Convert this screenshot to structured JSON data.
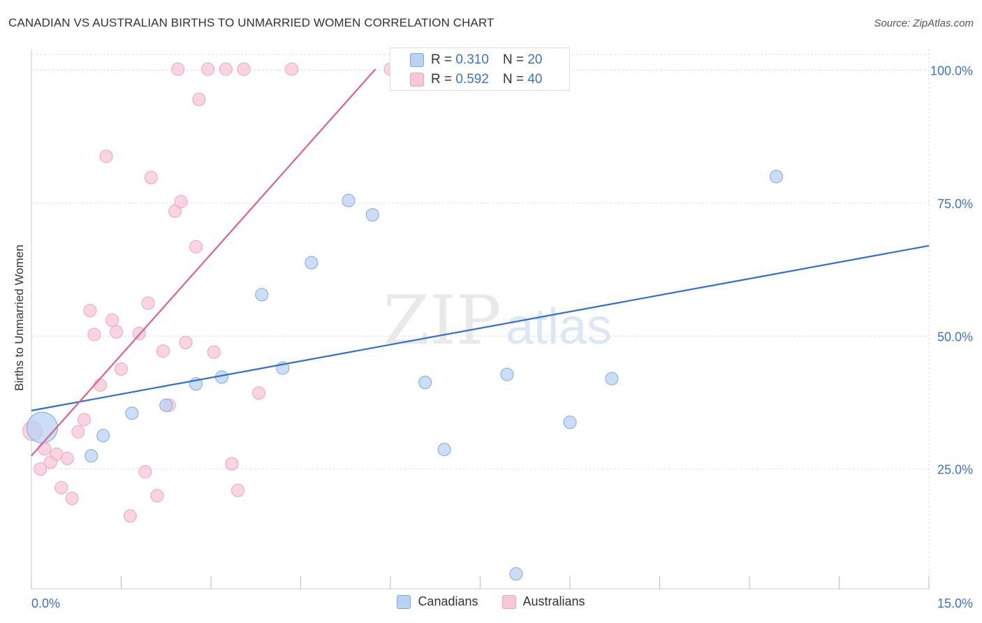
{
  "title": "CANADIAN VS AUSTRALIAN BIRTHS TO UNMARRIED WOMEN CORRELATION CHART",
  "source": "Source: ZipAtlas.com",
  "watermark": {
    "zip": "ZIP",
    "atlas": "atlas"
  },
  "colors": {
    "blue_fill": "#b9d3f3",
    "blue_stroke": "#7ea9df",
    "blue_line": "#2f6fce",
    "pink_fill": "#f8c6d5",
    "pink_stroke": "#eea3bb",
    "pink_line": "#e0628c",
    "tick_label": "#3a73c8",
    "grid": "#dddddd"
  },
  "inset_legend": [
    {
      "r_label": "R =",
      "r_value": "0.310",
      "n_label": "N =",
      "n_value": "20"
    },
    {
      "r_label": "R =",
      "r_value": "0.592",
      "n_label": "N =",
      "n_value": "40"
    }
  ],
  "chart_data": {
    "type": "scatter",
    "title": "CANADIAN VS AUSTRALIAN BIRTHS TO UNMARRIED WOMEN CORRELATION CHART",
    "xlabel": "",
    "ylabel": "Births to Unmarried Women",
    "xlim": [
      0,
      15
    ],
    "ylim": [
      2.5,
      104
    ],
    "x_tick_labels": [
      "0.0%",
      "15.0%"
    ],
    "y_tick_values": [
      25,
      50,
      75,
      100
    ],
    "y_tick_labels": [
      "25.0%",
      "50.0%",
      "75.0%",
      "100.0%"
    ],
    "grid": true,
    "legend_placement": "bottom-center",
    "series": [
      {
        "name": "Canadians",
        "color": "#b9d3f3",
        "points": [
          [
            0.18,
            32.8
          ],
          [
            1.0,
            27.5
          ],
          [
            1.2,
            31.3
          ],
          [
            1.68,
            35.5
          ],
          [
            2.25,
            37.0
          ],
          [
            2.75,
            41.0
          ],
          [
            3.18,
            42.3
          ],
          [
            3.85,
            57.8
          ],
          [
            4.2,
            44.0
          ],
          [
            4.68,
            63.8
          ],
          [
            5.3,
            75.5
          ],
          [
            5.7,
            72.8
          ],
          [
            6.58,
            41.3
          ],
          [
            6.9,
            28.7
          ],
          [
            7.5,
            100.5
          ],
          [
            7.95,
            42.8
          ],
          [
            8.1,
            5.3
          ],
          [
            9.0,
            33.8
          ],
          [
            9.7,
            42.0
          ],
          [
            12.45,
            80.0
          ]
        ],
        "sizes": [
          22,
          9,
          9,
          9,
          9,
          9,
          9,
          9,
          9,
          9,
          9,
          9,
          9,
          9,
          9,
          9,
          9,
          9,
          9,
          9
        ],
        "trend": {
          "x": [
            0,
            15
          ],
          "y": [
            36.0,
            67.0
          ]
        }
      },
      {
        "name": "Australians",
        "color": "#f8c6d5",
        "points": [
          [
            0.02,
            32.2
          ],
          [
            0.15,
            25.0
          ],
          [
            0.22,
            28.8
          ],
          [
            0.32,
            26.3
          ],
          [
            0.42,
            27.8
          ],
          [
            0.5,
            21.5
          ],
          [
            0.6,
            27.0
          ],
          [
            0.68,
            19.5
          ],
          [
            0.78,
            32.0
          ],
          [
            0.88,
            34.3
          ],
          [
            0.98,
            54.8
          ],
          [
            1.05,
            50.3
          ],
          [
            1.15,
            40.8
          ],
          [
            1.25,
            83.8
          ],
          [
            1.35,
            53.0
          ],
          [
            1.42,
            50.8
          ],
          [
            1.5,
            43.8
          ],
          [
            1.65,
            16.2
          ],
          [
            1.8,
            50.5
          ],
          [
            1.9,
            24.5
          ],
          [
            1.95,
            56.2
          ],
          [
            2.0,
            79.8
          ],
          [
            2.1,
            20.0
          ],
          [
            2.2,
            47.2
          ],
          [
            2.3,
            37.0
          ],
          [
            2.4,
            73.5
          ],
          [
            2.45,
            100.2
          ],
          [
            2.5,
            75.3
          ],
          [
            2.58,
            48.8
          ],
          [
            2.75,
            66.8
          ],
          [
            2.8,
            94.5
          ],
          [
            2.95,
            100.2
          ],
          [
            3.05,
            47.0
          ],
          [
            3.25,
            100.2
          ],
          [
            3.35,
            26.0
          ],
          [
            3.45,
            21.0
          ],
          [
            3.55,
            100.2
          ],
          [
            3.8,
            39.3
          ],
          [
            4.35,
            100.2
          ],
          [
            6.0,
            100.2
          ]
        ],
        "sizes": [
          14,
          9,
          9,
          9,
          9,
          9,
          9,
          9,
          9,
          9,
          9,
          9,
          9,
          9,
          9,
          9,
          9,
          9,
          9,
          9,
          9,
          9,
          9,
          9,
          9,
          9,
          9,
          9,
          9,
          9,
          9,
          9,
          9,
          9,
          9,
          9,
          9,
          9,
          9,
          9
        ],
        "trend": {
          "x": [
            0,
            5.75
          ],
          "y": [
            27.5,
            100.2
          ]
        }
      }
    ]
  }
}
